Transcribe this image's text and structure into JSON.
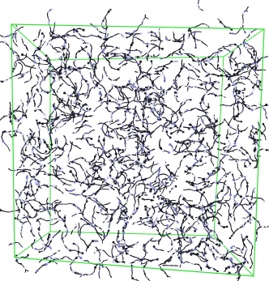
{
  "scene": {
    "background_color": "#ffffff",
    "box_color": "#33dd33",
    "bond_color": "#1a1a24",
    "atom_colors": [
      "#1a1a24",
      "#2a2a3a",
      "#c7c9f0",
      "#e6e6f5",
      "#7c80c6"
    ],
    "icon": "simulation-box"
  }
}
